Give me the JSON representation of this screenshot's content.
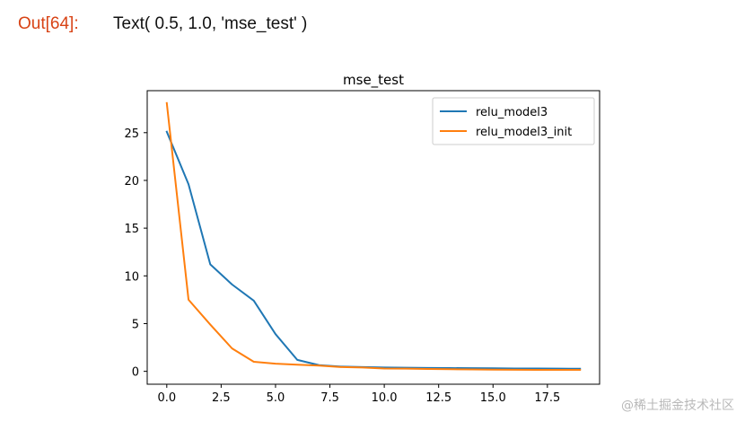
{
  "cell": {
    "prompt": "Out[64]:",
    "output": "Text( 0.5, 1.0, 'mse_test' )"
  },
  "watermark": "@稀土掘金技术社区",
  "chart_data": {
    "type": "line",
    "title": "mse_test",
    "xlabel": "",
    "ylabel": "",
    "xlim": [
      -0.9,
      19.9
    ],
    "ylim": [
      -1.35,
      29.4
    ],
    "xticks": [
      0.0,
      2.5,
      5.0,
      7.5,
      10.0,
      12.5,
      15.0,
      17.5
    ],
    "xtick_labels": [
      "0.0",
      "2.5",
      "5.0",
      "7.5",
      "10.0",
      "12.5",
      "15.0",
      "17.5"
    ],
    "yticks": [
      0,
      5,
      10,
      15,
      20,
      25
    ],
    "ytick_labels": [
      "0",
      "5",
      "10",
      "15",
      "20",
      "25"
    ],
    "grid": false,
    "legend_position": "top-right",
    "x": [
      0,
      1,
      2,
      3,
      4,
      5,
      6,
      7,
      8,
      9,
      10,
      11,
      12,
      13,
      14,
      15,
      16,
      17,
      18,
      19
    ],
    "series": [
      {
        "name": "relu_model3",
        "color": "#1f77b4",
        "values": [
          25.1,
          19.6,
          11.2,
          9.1,
          7.4,
          3.9,
          1.2,
          0.65,
          0.5,
          0.45,
          0.4,
          0.38,
          0.36,
          0.34,
          0.33,
          0.32,
          0.3,
          0.29,
          0.28,
          0.27
        ]
      },
      {
        "name": "relu_model3_init",
        "color": "#ff7f0e",
        "values": [
          28.1,
          7.5,
          4.9,
          2.4,
          1.0,
          0.8,
          0.7,
          0.6,
          0.45,
          0.4,
          0.3,
          0.28,
          0.25,
          0.22,
          0.2,
          0.18,
          0.17,
          0.16,
          0.15,
          0.15
        ]
      }
    ]
  }
}
